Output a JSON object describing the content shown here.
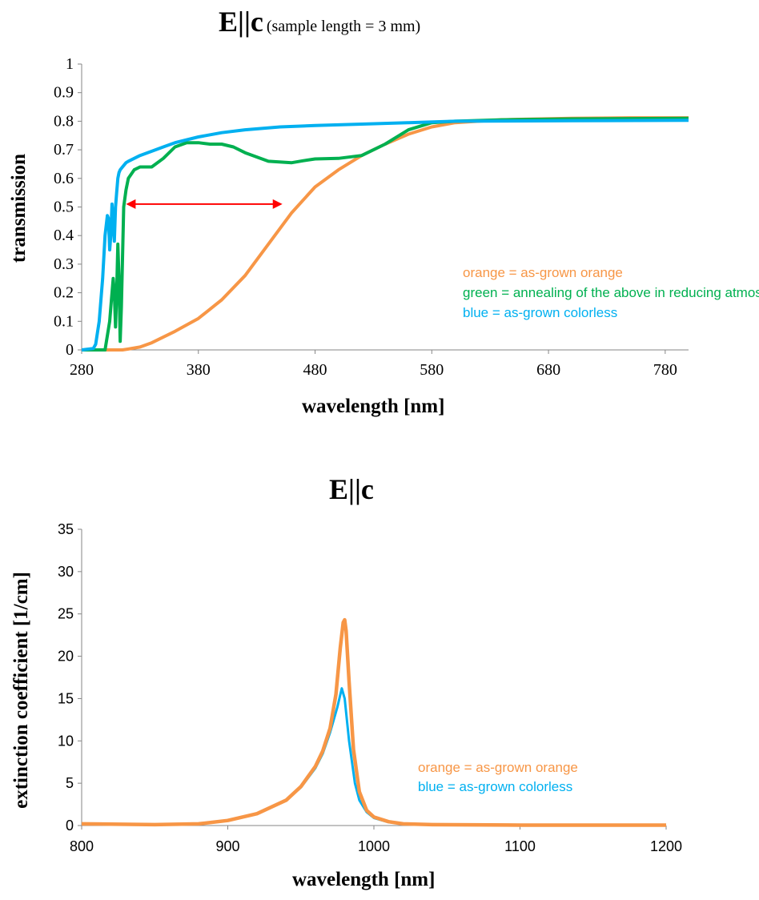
{
  "chart_data": [
    {
      "type": "line",
      "title": "E||c",
      "subtitle": "(sample length = 3 mm)",
      "xlabel": "wavelength [nm]",
      "ylabel": "transmission",
      "xlim": [
        280,
        800
      ],
      "ylim": [
        0,
        1
      ],
      "xticks": [
        "280",
        "380",
        "480",
        "580",
        "680",
        "780"
      ],
      "yticks": [
        "0",
        "0.1",
        "0.2",
        "0.3",
        "0.4",
        "0.5",
        "0.6",
        "0.7",
        "0.8",
        "0.9",
        "1"
      ],
      "grid": false,
      "annotations": [
        {
          "text": "orange = as-grown orange",
          "color": "#F79646"
        },
        {
          "text": "green = annealing of the above in reducing atmosphere",
          "color": "#00B050"
        },
        {
          "text": "blue = as-grown colorless",
          "color": "#00B0F0"
        }
      ],
      "arrow": {
        "x1": 318,
        "x2": 452,
        "y": 0.51,
        "color": "#FF0000"
      },
      "series": [
        {
          "key": "orange",
          "color": "#F79646",
          "x": [
            280,
            315,
            320,
            330,
            340,
            360,
            380,
            400,
            420,
            440,
            460,
            480,
            500,
            520,
            540,
            560,
            580,
            600,
            620,
            640,
            660,
            700,
            750,
            800
          ],
          "y": [
            0,
            0,
            0.003,
            0.01,
            0.025,
            0.065,
            0.11,
            0.175,
            0.26,
            0.37,
            0.48,
            0.57,
            0.63,
            0.68,
            0.72,
            0.755,
            0.78,
            0.795,
            0.8,
            0.805,
            0.807,
            0.81,
            0.812,
            0.812
          ]
        },
        {
          "key": "green",
          "color": "#00B050",
          "x": [
            280,
            300,
            304,
            306,
            307,
            308,
            309,
            310,
            311,
            312,
            313,
            314,
            316,
            318,
            320,
            325,
            330,
            340,
            350,
            360,
            370,
            380,
            390,
            400,
            410,
            420,
            440,
            460,
            470,
            480,
            500,
            520,
            540,
            560,
            580,
            600,
            640,
            700,
            800
          ],
          "y": [
            0,
            0,
            0.1,
            0.2,
            0.25,
            0.2,
            0.08,
            0.2,
            0.37,
            0.25,
            0.03,
            0.15,
            0.5,
            0.56,
            0.6,
            0.63,
            0.64,
            0.64,
            0.67,
            0.71,
            0.725,
            0.725,
            0.72,
            0.72,
            0.71,
            0.69,
            0.66,
            0.655,
            0.662,
            0.668,
            0.67,
            0.68,
            0.72,
            0.77,
            0.795,
            0.8,
            0.805,
            0.808,
            0.81
          ]
        },
        {
          "key": "blue",
          "color": "#00B0F0",
          "x": [
            280,
            290,
            292,
            295,
            298,
            300,
            302,
            303,
            304,
            305,
            306,
            307,
            308,
            309,
            310,
            311,
            312,
            313,
            315,
            318,
            320,
            325,
            330,
            340,
            350,
            360,
            380,
            400,
            420,
            450,
            480,
            520,
            560,
            600,
            700,
            800
          ],
          "y": [
            0,
            0.005,
            0.02,
            0.1,
            0.25,
            0.4,
            0.47,
            0.46,
            0.35,
            0.4,
            0.51,
            0.45,
            0.38,
            0.5,
            0.55,
            0.6,
            0.62,
            0.63,
            0.64,
            0.655,
            0.66,
            0.67,
            0.68,
            0.695,
            0.71,
            0.725,
            0.745,
            0.76,
            0.77,
            0.78,
            0.785,
            0.79,
            0.795,
            0.8,
            0.802,
            0.803
          ]
        }
      ]
    },
    {
      "type": "line",
      "title": "E||c",
      "xlabel": "wavelength [nm]",
      "ylabel": "extinction coefficient [1/cm]",
      "xlim": [
        800,
        1200
      ],
      "ylim": [
        0,
        35
      ],
      "xticks": [
        "800",
        "900",
        "1000",
        "1100",
        "1200"
      ],
      "yticks": [
        "0",
        "5",
        "10",
        "15",
        "20",
        "25",
        "30",
        "35"
      ],
      "grid": false,
      "annotations": [
        {
          "text": "orange = as-grown orange",
          "color": "#F79646"
        },
        {
          "text": "blue = as-grown colorless",
          "color": "#00B0F0"
        }
      ],
      "series": [
        {
          "key": "blue",
          "color": "#00B0F0",
          "x": [
            800,
            850,
            880,
            900,
            920,
            940,
            950,
            960,
            965,
            970,
            975,
            978,
            980,
            983,
            987,
            990,
            995,
            1000,
            1010,
            1020,
            1040,
            1100,
            1200
          ],
          "y": [
            0.2,
            0.1,
            0.2,
            0.6,
            1.4,
            3,
            4.5,
            6.8,
            8.5,
            11,
            14,
            16.2,
            15,
            10,
            5,
            3,
            1.6,
            0.9,
            0.4,
            0.2,
            0.1,
            0.05,
            0.05
          ]
        },
        {
          "key": "orange",
          "color": "#F79646",
          "x": [
            800,
            850,
            880,
            900,
            920,
            940,
            950,
            960,
            965,
            970,
            974,
            977,
            979,
            980,
            981,
            983,
            986,
            990,
            995,
            1000,
            1010,
            1020,
            1040,
            1100,
            1200
          ],
          "y": [
            0.2,
            0.1,
            0.2,
            0.6,
            1.4,
            3,
            4.6,
            7,
            8.8,
            11.5,
            15.5,
            21,
            24,
            24.3,
            23,
            17,
            9,
            4,
            1.8,
            1,
            0.45,
            0.2,
            0.1,
            0.05,
            0.05
          ]
        }
      ]
    }
  ]
}
